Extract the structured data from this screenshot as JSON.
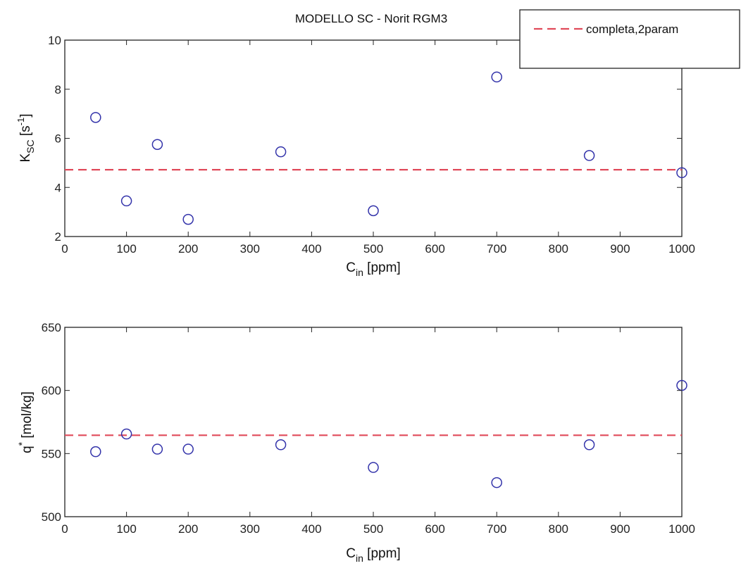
{
  "chart_data": [
    {
      "type": "scatter",
      "title": "MODELLO SC - Norit RGM3",
      "xlabel": "C",
      "xlabel_sub": "in",
      "xlabel_unit": " [ppm]",
      "ylabel": "K",
      "ylabel_sub": "SC",
      "ylabel_unit_pre": " [s",
      "ylabel_unit_sup": "-1",
      "ylabel_unit_post": "]",
      "xlim": [
        0,
        1000
      ],
      "ylim": [
        2,
        10
      ],
      "xticks": [
        0,
        100,
        200,
        300,
        400,
        500,
        600,
        700,
        800,
        900,
        1000
      ],
      "yticks": [
        2,
        4,
        6,
        8,
        10
      ],
      "grid": false,
      "series": [
        {
          "kind": "markers",
          "color": "#3333aa",
          "x": [
            50,
            100,
            150,
            200,
            350,
            500,
            700,
            850,
            1000
          ],
          "y": [
            6.85,
            3.45,
            5.75,
            2.7,
            5.45,
            3.05,
            8.5,
            5.3,
            4.6
          ]
        },
        {
          "kind": "hline",
          "name": "completa,2param",
          "color": "#e04a5a",
          "style": "dashed",
          "y": 4.72
        }
      ],
      "legend": {
        "position": "top-right",
        "entries": [
          "completa,2param"
        ]
      }
    },
    {
      "type": "scatter",
      "xlabel": "C",
      "xlabel_sub": "in",
      "xlabel_unit": " [ppm]",
      "ylabel": "q",
      "ylabel_sub": "*",
      "ylabel_unit_pre": " [mol/kg]",
      "xlim": [
        0,
        1000
      ],
      "ylim": [
        500,
        650
      ],
      "xticks": [
        0,
        100,
        200,
        300,
        400,
        500,
        600,
        700,
        800,
        900,
        1000
      ],
      "yticks": [
        500,
        550,
        600,
        650
      ],
      "grid": false,
      "series": [
        {
          "kind": "markers",
          "color": "#3333aa",
          "x": [
            50,
            100,
            150,
            200,
            350,
            500,
            700,
            850,
            1000
          ],
          "y": [
            551.5,
            565.5,
            553.5,
            553.5,
            557,
            539,
            527,
            557,
            604
          ]
        },
        {
          "kind": "hline",
          "color": "#e04a5a",
          "style": "dashed",
          "y": 564.5
        }
      ]
    }
  ]
}
